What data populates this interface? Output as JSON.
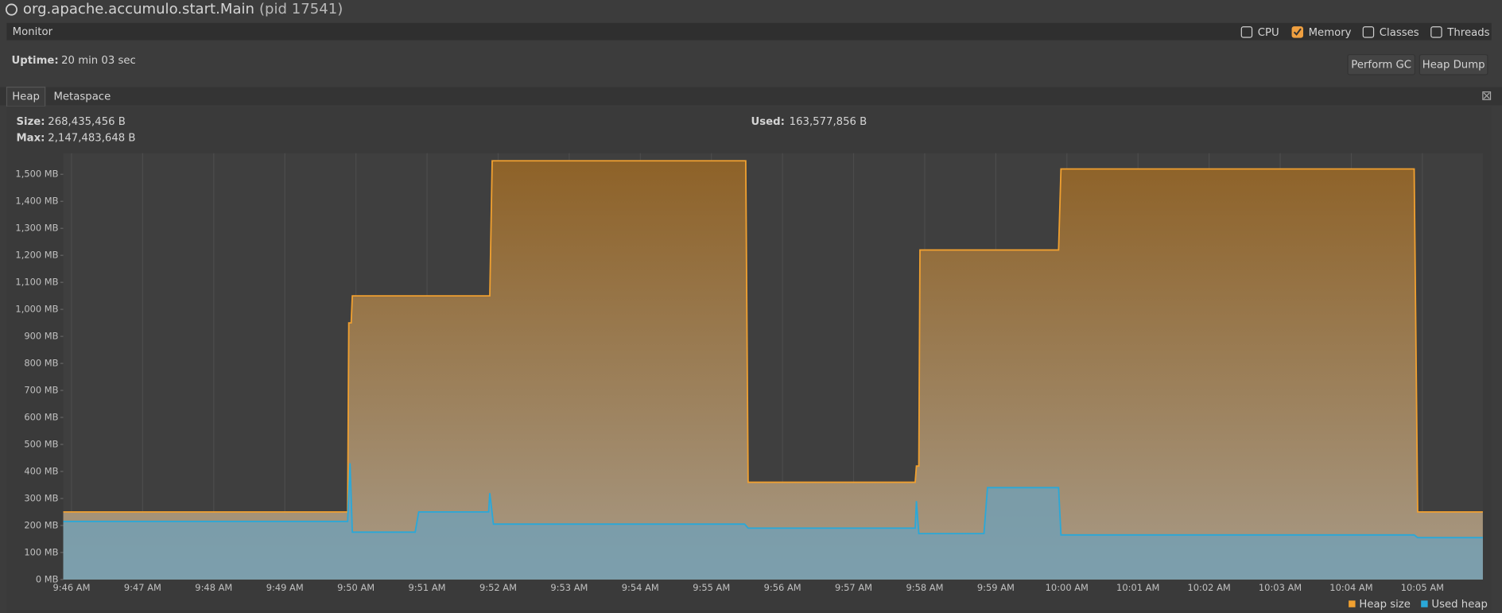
{
  "header": {
    "title": "org.apache.accumulo.start.Main",
    "pid": "(pid 17541)"
  },
  "monitor": {
    "label": "Monitor",
    "checkboxes": [
      {
        "label": "CPU",
        "checked": false
      },
      {
        "label": "Memory",
        "checked": true
      },
      {
        "label": "Classes",
        "checked": false
      },
      {
        "label": "Threads",
        "checked": false
      }
    ],
    "uptime_label": "Uptime:",
    "uptime": "20 min 03 sec",
    "buttons": [
      "Perform GC",
      "Heap Dump"
    ]
  },
  "tabs": [
    "Heap",
    "Metaspace"
  ],
  "stats": {
    "size_label": "Size:",
    "size": "268,435,456 B",
    "max_label": "Max:",
    "max": "2,147,483,648 B",
    "used_label": "Used:",
    "used": "163,577,856 B"
  },
  "chart_data": {
    "type": "area",
    "grid": "x",
    "xlim": [
      "09:45:53",
      "10:05:51"
    ],
    "xticks": [
      {
        "value": "09:46:00",
        "label": "9:46 AM"
      },
      {
        "value": "09:47:00",
        "label": "9:47 AM"
      },
      {
        "value": "09:48:00",
        "label": "9:48 AM"
      },
      {
        "value": "09:49:00",
        "label": "9:49 AM"
      },
      {
        "value": "09:50:00",
        "label": "9:50 AM"
      },
      {
        "value": "09:51:00",
        "label": "9:51 AM"
      },
      {
        "value": "09:52:00",
        "label": "9:52 AM"
      },
      {
        "value": "09:53:00",
        "label": "9:53 AM"
      },
      {
        "value": "09:54:00",
        "label": "9:54 AM"
      },
      {
        "value": "09:55:00",
        "label": "9:55 AM"
      },
      {
        "value": "09:56:00",
        "label": "9:56 AM"
      },
      {
        "value": "09:57:00",
        "label": "9:57 AM"
      },
      {
        "value": "09:58:00",
        "label": "9:58 AM"
      },
      {
        "value": "09:59:00",
        "label": "9:59 AM"
      },
      {
        "value": "10:00:00",
        "label": "10:00 AM"
      },
      {
        "value": "10:01:00",
        "label": "10:01 AM"
      },
      {
        "value": "10:02:00",
        "label": "10:02 AM"
      },
      {
        "value": "10:03:00",
        "label": "10:03 AM"
      },
      {
        "value": "10:04:00",
        "label": "10:04 AM"
      },
      {
        "value": "10:05:00",
        "label": "10:05 AM"
      }
    ],
    "ylim": [
      0,
      1578
    ],
    "yticks": [
      {
        "value": 0,
        "label": "0 MB"
      },
      {
        "value": 100,
        "label": "100 MB"
      },
      {
        "value": 200,
        "label": "200 MB"
      },
      {
        "value": 300,
        "label": "300 MB"
      },
      {
        "value": 400,
        "label": "400 MB"
      },
      {
        "value": 500,
        "label": "500 MB"
      },
      {
        "value": 600,
        "label": "600 MB"
      },
      {
        "value": 700,
        "label": "700 MB"
      },
      {
        "value": 800,
        "label": "800 MB"
      },
      {
        "value": 900,
        "label": "900 MB"
      },
      {
        "value": 1000,
        "label": "1,000 MB"
      },
      {
        "value": 1100,
        "label": "1,100 MB"
      },
      {
        "value": 1200,
        "label": "1,200 MB"
      },
      {
        "value": 1300,
        "label": "1,300 MB"
      },
      {
        "value": 1400,
        "label": "1,400 MB"
      },
      {
        "value": 1500,
        "label": "1,500 MB"
      }
    ],
    "legend": "bottom-right",
    "series": [
      {
        "name": "Heap size",
        "color": "#f0a030",
        "x": [
          "09:45:53",
          "09:49:53",
          "09:49:54",
          "09:49:56",
          "09:49:57",
          "09:51:53",
          "09:51:55",
          "09:55:29",
          "09:55:31",
          "09:57:52",
          "09:57:53",
          "09:57:55",
          "09:57:56",
          "09:59:53",
          "09:59:55",
          "10:04:53",
          "10:04:56",
          "10:05:51"
        ],
        "values": [
          250,
          250,
          950,
          950,
          1050,
          1050,
          1550,
          1550,
          360,
          360,
          420,
          420,
          1220,
          1220,
          1520,
          1520,
          250,
          250
        ]
      },
      {
        "name": "Used heap",
        "color": "#2aa8d8",
        "x": [
          "09:45:53",
          "09:49:53",
          "09:49:55",
          "09:49:57",
          "09:50:50",
          "09:50:53",
          "09:51:52",
          "09:51:53",
          "09:51:56",
          "09:55:28",
          "09:55:31",
          "09:57:52",
          "09:57:53",
          "09:57:55",
          "09:58:50",
          "09:58:53",
          "09:59:53",
          "09:59:55",
          "10:04:53",
          "10:04:56",
          "10:05:51"
        ],
        "values": [
          215,
          215,
          430,
          175,
          175,
          250,
          250,
          320,
          205,
          205,
          190,
          190,
          290,
          170,
          170,
          340,
          340,
          165,
          165,
          155,
          155
        ]
      }
    ]
  }
}
